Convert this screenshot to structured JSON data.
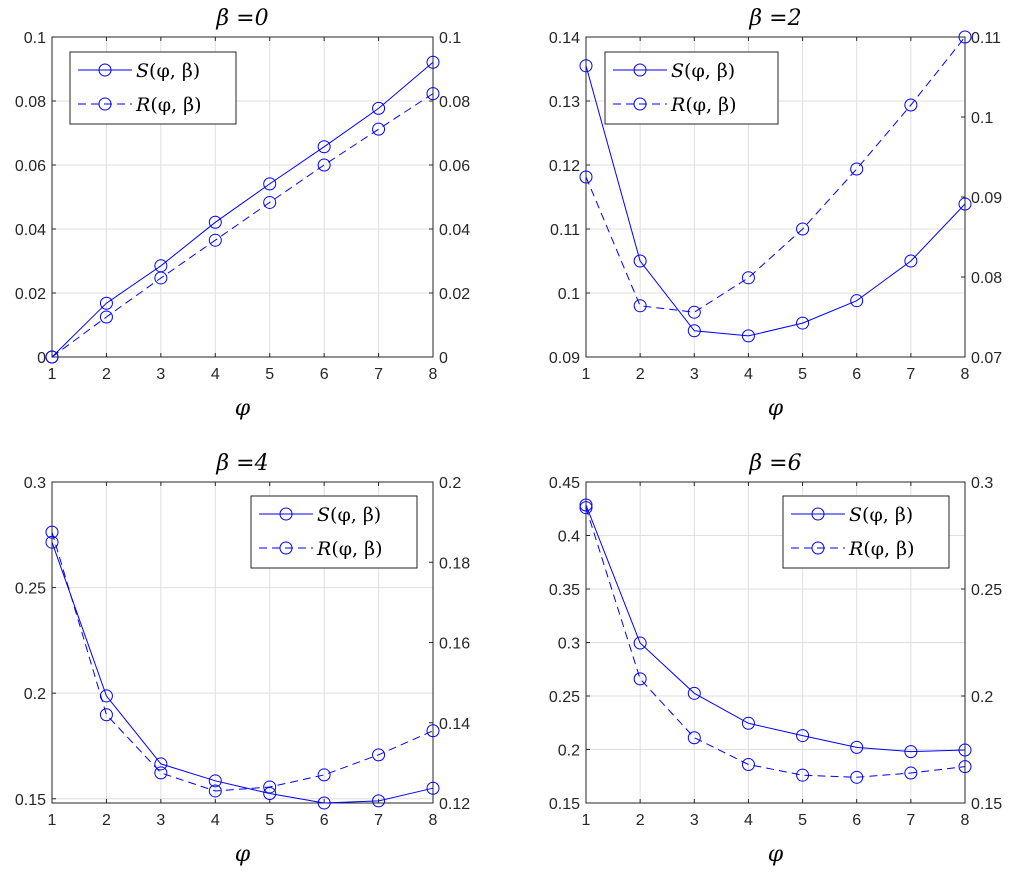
{
  "chart_data": [
    {
      "type": "line",
      "title": "β =0",
      "xlabel": "φ",
      "x": [
        1,
        2,
        3,
        4,
        5,
        6,
        7,
        8
      ],
      "xticks": [
        "1",
        "2",
        "3",
        "4",
        "5",
        "6",
        "7",
        "8"
      ],
      "xlim": [
        1,
        8
      ],
      "ylim_left": [
        0,
        0.1
      ],
      "yticks_left": [
        0,
        0.02,
        0.04,
        0.06,
        0.08,
        0.1
      ],
      "ytick_labels_left": [
        "0",
        "0.02",
        "0.04",
        "0.06",
        "0.08",
        "0.1"
      ],
      "ylim_right": [
        0,
        0.1
      ],
      "yticks_right": [
        0,
        0.02,
        0.04,
        0.06,
        0.08,
        0.1
      ],
      "ytick_labels_right": [
        "0",
        "0.02",
        "0.04",
        "0.06",
        "0.08",
        "0.1"
      ],
      "grid": true,
      "legend_position": "top-left",
      "series": [
        {
          "name": "S(φ, β)",
          "axis": "left",
          "style": "solid",
          "marker": "circle",
          "values": [
            0.0,
            0.0168,
            0.0285,
            0.0421,
            0.0541,
            0.0657,
            0.0777,
            0.0921
          ]
        },
        {
          "name": "R(φ, β)",
          "axis": "right",
          "style": "dashed",
          "marker": "circle",
          "values": [
            0.0,
            0.0125,
            0.0247,
            0.0365,
            0.0483,
            0.06,
            0.0712,
            0.0823
          ]
        }
      ]
    },
    {
      "type": "line",
      "title": "β =2",
      "xlabel": "φ",
      "x": [
        1,
        2,
        3,
        4,
        5,
        6,
        7,
        8
      ],
      "xticks": [
        "1",
        "2",
        "3",
        "4",
        "5",
        "6",
        "7",
        "8"
      ],
      "xlim": [
        1,
        8
      ],
      "ylim_left": [
        0.09,
        0.14
      ],
      "yticks_left": [
        0.09,
        0.1,
        0.11,
        0.12,
        0.13,
        0.14
      ],
      "ytick_labels_left": [
        "0.09",
        "0.1",
        "0.11",
        "0.12",
        "0.13",
        "0.14"
      ],
      "ylim_right": [
        0.07,
        0.11
      ],
      "yticks_right": [
        0.07,
        0.08,
        0.09,
        0.1,
        0.11
      ],
      "ytick_labels_right": [
        "0.07",
        "0.08",
        "0.09",
        "0.1",
        "0.11"
      ],
      "grid": true,
      "legend_position": "top-left",
      "series": [
        {
          "name": "S(φ, β)",
          "axis": "left",
          "style": "solid",
          "marker": "circle",
          "values": [
            0.1355,
            0.105,
            0.0941,
            0.0933,
            0.0953,
            0.0988,
            0.105,
            0.1139
          ]
        },
        {
          "name": "R(φ, β)",
          "axis": "right",
          "style": "dashed",
          "marker": "circle",
          "values": [
            0.0925,
            0.0764,
            0.0756,
            0.0799,
            0.086,
            0.0935,
            0.1015,
            0.11
          ]
        }
      ]
    },
    {
      "type": "line",
      "title": "β =4",
      "xlabel": "φ",
      "x": [
        1,
        2,
        3,
        4,
        5,
        6,
        7,
        8
      ],
      "xticks": [
        "1",
        "2",
        "3",
        "4",
        "5",
        "6",
        "7",
        "8"
      ],
      "xlim": [
        1,
        8
      ],
      "ylim_left": [
        0.148,
        0.3
      ],
      "yticks_left": [
        0.15,
        0.2,
        0.25,
        0.3
      ],
      "ytick_labels_left": [
        "0.15",
        "0.2",
        "0.25",
        "0.3"
      ],
      "ylim_right": [
        0.12,
        0.2
      ],
      "yticks_right": [
        0.12,
        0.14,
        0.16,
        0.18,
        0.2
      ],
      "ytick_labels_right": [
        "0.12",
        "0.14",
        "0.16",
        "0.18",
        "0.2"
      ],
      "grid": true,
      "legend_position": "top-right",
      "series": [
        {
          "name": "S(φ, β)",
          "axis": "left",
          "style": "solid",
          "marker": "circle",
          "values": [
            0.2715,
            0.1987,
            0.1665,
            0.1585,
            0.1525,
            0.148,
            0.149,
            0.155
          ]
        },
        {
          "name": "R(φ, β)",
          "axis": "right",
          "style": "dashed",
          "marker": "circle",
          "values": [
            0.1875,
            0.142,
            0.1275,
            0.123,
            0.124,
            0.127,
            0.132,
            0.138
          ]
        }
      ]
    },
    {
      "type": "line",
      "title": "β =6",
      "xlabel": "φ",
      "x": [
        1,
        2,
        3,
        4,
        5,
        6,
        7,
        8
      ],
      "xticks": [
        "1",
        "2",
        "3",
        "4",
        "5",
        "6",
        "7",
        "8"
      ],
      "xlim": [
        1,
        8
      ],
      "ylim_left": [
        0.15,
        0.45
      ],
      "yticks_left": [
        0.15,
        0.2,
        0.25,
        0.3,
        0.35,
        0.4,
        0.45
      ],
      "ytick_labels_left": [
        "0.15",
        "0.2",
        "0.25",
        "0.3",
        "0.35",
        "0.4",
        "0.45"
      ],
      "ylim_right": [
        0.15,
        0.3
      ],
      "yticks_right": [
        0.15,
        0.2,
        0.25,
        0.3
      ],
      "ytick_labels_right": [
        "0.15",
        "0.2",
        "0.25",
        "0.3"
      ],
      "grid": true,
      "legend_position": "top-right",
      "series": [
        {
          "name": "S(φ, β)",
          "axis": "left",
          "style": "solid",
          "marker": "circle",
          "values": [
            0.4285,
            0.2995,
            0.2525,
            0.2245,
            0.213,
            0.202,
            0.198,
            0.1995
          ]
        },
        {
          "name": "R(φ, β)",
          "axis": "right",
          "style": "dashed",
          "marker": "circle",
          "values": [
            0.288,
            0.208,
            0.1805,
            0.168,
            0.163,
            0.162,
            0.164,
            0.167
          ]
        }
      ]
    }
  ],
  "legend": {
    "s_symbol": "S",
    "s_args": "(φ, β)",
    "r_symbol": "R",
    "r_args": "(φ, β)"
  },
  "colors": {
    "series": "#0000FF",
    "grid": "#DFDFDF",
    "axis": "#262626"
  }
}
